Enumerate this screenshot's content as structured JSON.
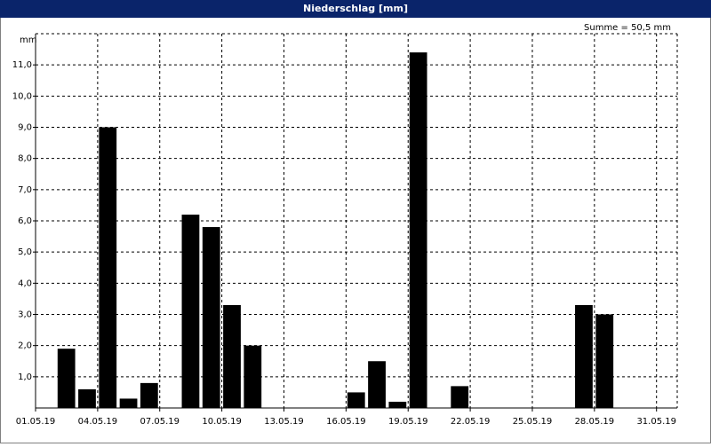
{
  "chart_data": {
    "type": "bar",
    "title": "Niederschlag [mm]",
    "y_axis_label": "mm",
    "annotation": "Summe = 50,5 mm",
    "categories": [
      "01.05.19",
      null,
      null,
      "04.05.19",
      null,
      null,
      "07.05.19",
      null,
      null,
      "10.05.19",
      null,
      null,
      "13.05.19",
      null,
      null,
      "16.05.19",
      null,
      null,
      "19.05.19",
      null,
      null,
      "22.05.19",
      null,
      null,
      "25.05.19",
      null,
      null,
      "28.05.19",
      null,
      null,
      "31.05.19"
    ],
    "values": [
      0,
      1.9,
      0.6,
      9.0,
      0.3,
      0.8,
      0,
      6.2,
      5.8,
      3.3,
      2.0,
      0,
      0,
      0,
      0,
      0.5,
      1.5,
      0.2,
      11.4,
      0,
      0.7,
      0,
      0,
      0,
      0,
      0,
      3.3,
      3.0,
      0,
      0,
      0
    ],
    "color": "#000000",
    "ylim": [
      0,
      12
    ],
    "yticks": [
      {
        "value": 1,
        "label": "1,0"
      },
      {
        "value": 2,
        "label": "2,0"
      },
      {
        "value": 3,
        "label": "3,0"
      },
      {
        "value": 4,
        "label": "4,0"
      },
      {
        "value": 5,
        "label": "5,0"
      },
      {
        "value": 6,
        "label": "6,0"
      },
      {
        "value": 7,
        "label": "7,0"
      },
      {
        "value": 8,
        "label": "8,0"
      },
      {
        "value": 9,
        "label": "9,0"
      },
      {
        "value": 10,
        "label": "10,0"
      },
      {
        "value": 11,
        "label": "11,0"
      }
    ],
    "grid": true
  }
}
